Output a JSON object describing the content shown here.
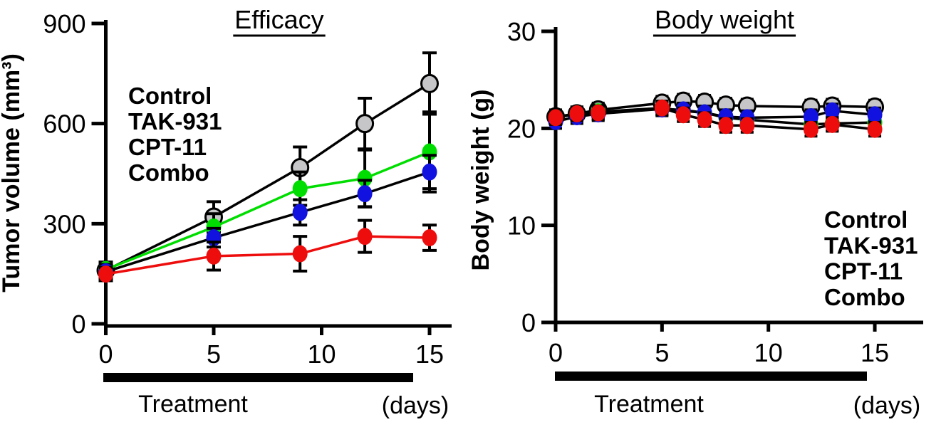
{
  "page": {
    "background": "#ffffff"
  },
  "chart_data": [
    {
      "type": "line",
      "title": "Efficacy",
      "ylabel": "Tumor volume (mm³)",
      "xlabel": "Treatment",
      "xunits": "(days)",
      "x": [
        0,
        5,
        9,
        12,
        15
      ],
      "xticks": [
        0,
        5,
        10,
        15
      ],
      "yticks": [
        0,
        300,
        600,
        900
      ],
      "xlim": [
        0,
        16
      ],
      "ylim": [
        0,
        900
      ],
      "grid": false,
      "legend_position": "upper-left",
      "treatment_bar_days": [
        0,
        15
      ],
      "series": [
        {
          "name": "Control",
          "marker_color": "#c6c6c8",
          "marker_stroke": "#000000",
          "line_color": "#000000",
          "values": [
            160,
            320,
            468,
            600,
            720
          ],
          "errors": [
            25,
            46,
            62,
            76,
            92
          ]
        },
        {
          "name": "CPT-11",
          "marker_color": "#00dd00",
          "line_color": "#00dd00",
          "values": [
            163,
            290,
            405,
            436,
            515
          ],
          "errors": [
            22,
            40,
            50,
            85,
            120
          ]
        },
        {
          "name": "TAK-931",
          "marker_color": "#1212e0",
          "line_color": "#000000",
          "values": [
            156,
            258,
            334,
            390,
            455
          ],
          "errors": [
            22,
            28,
            38,
            40,
            50
          ]
        },
        {
          "name": "Combo",
          "marker_color": "#ee0d0d",
          "line_color": "#ee0d0d",
          "values": [
            149,
            203,
            210,
            262,
            258
          ],
          "errors": [
            20,
            42,
            52,
            48,
            38
          ]
        }
      ],
      "legend": [
        {
          "label": "Control",
          "color": "#000000"
        },
        {
          "label": "TAK-931",
          "color": "#1a1ae0"
        },
        {
          "label": "CPT-11",
          "color": "#00a550"
        },
        {
          "label": "Combo",
          "color": "#f00a0a"
        }
      ]
    },
    {
      "type": "line",
      "title": "Body weight",
      "ylabel": "Body weight (g)",
      "xlabel": "Treatment",
      "xunits": "(days)",
      "x": [
        0,
        1,
        2,
        5,
        6,
        7,
        8,
        9,
        12,
        13,
        15
      ],
      "xticks": [
        0,
        5,
        10,
        15
      ],
      "yticks": [
        0,
        10,
        20,
        30
      ],
      "xlim": [
        0,
        17
      ],
      "ylim": [
        0,
        30
      ],
      "grid": false,
      "legend_position": "lower-right",
      "treatment_bar_days": [
        0,
        15
      ],
      "series": [
        {
          "name": "Control",
          "marker_color": "#c6c6c8",
          "marker_stroke": "#000000",
          "line_color": "#000000",
          "values": [
            21.2,
            21.5,
            21.9,
            22.6,
            22.8,
            22.7,
            22.4,
            22.3,
            22.2,
            22.3,
            22.2
          ],
          "errors": 0.7
        },
        {
          "name": "CPT-11",
          "marker_color": "#00dd00",
          "line_color": "#000000",
          "values": [
            21.1,
            21.5,
            21.7,
            22.1,
            21.8,
            21.6,
            21.1,
            20.9,
            20.4,
            20.5,
            20.6
          ],
          "errors": 0.7
        },
        {
          "name": "TAK-931",
          "marker_color": "#1212e0",
          "line_color": "#000000",
          "values": [
            20.7,
            21.2,
            21.5,
            22.0,
            21.9,
            21.6,
            21.2,
            21.1,
            21.2,
            21.8,
            21.4
          ],
          "errors": 0.7
        },
        {
          "name": "Combo",
          "marker_color": "#ee0d0d",
          "line_color": "#000000",
          "values": [
            21.1,
            21.5,
            21.6,
            22.1,
            21.4,
            20.9,
            20.3,
            20.3,
            19.9,
            20.4,
            19.9
          ],
          "errors": 0.7
        }
      ],
      "legend": [
        {
          "label": "Control",
          "color": "#000000"
        },
        {
          "label": "TAK-931",
          "color": "#1a1ae0"
        },
        {
          "label": "CPT-11",
          "color": "#00a550"
        },
        {
          "label": "Combo",
          "color": "#f00a0a"
        }
      ]
    }
  ]
}
